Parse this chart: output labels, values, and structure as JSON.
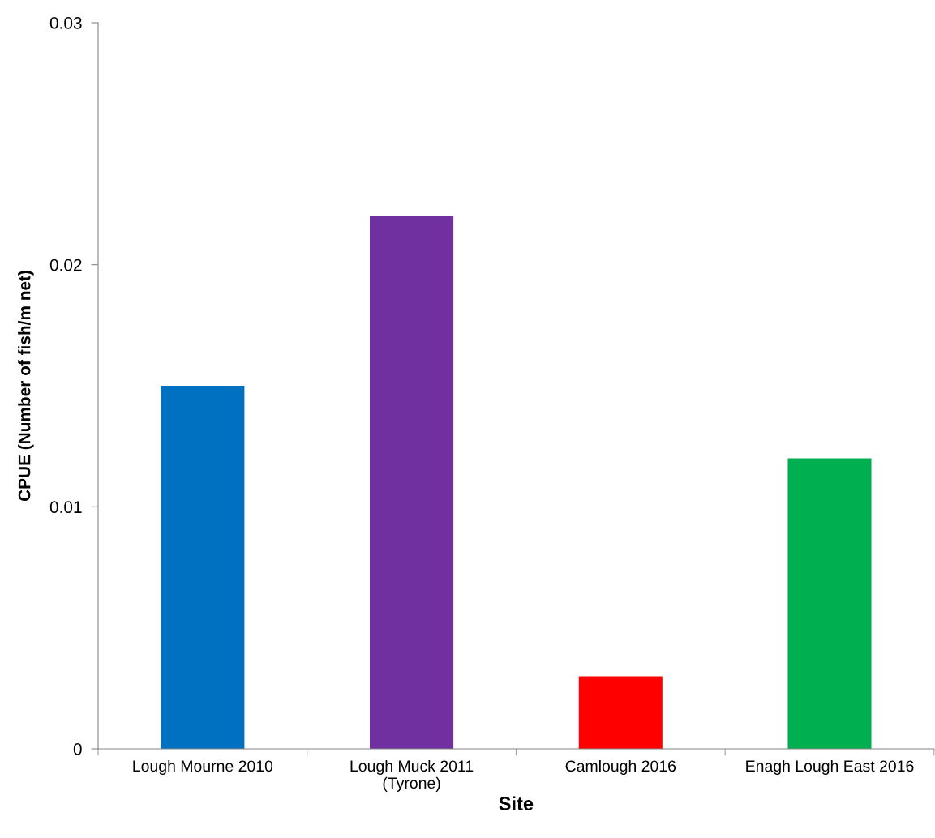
{
  "chart_data": {
    "type": "bar",
    "xlabel": "Site",
    "ylabel": "CPUE (Number of fish/m net)",
    "categories": [
      "Lough Mourne 2010",
      "Lough Muck 2011\n(Tyrone)",
      "Camlough 2016",
      "Enagh Lough East 2016"
    ],
    "values": [
      0.015,
      0.022,
      0.003,
      0.012
    ],
    "colors": [
      "#0070c0",
      "#7030a0",
      "#ff0000",
      "#00b050"
    ],
    "ylim": [
      0,
      0.03
    ],
    "yticks": [
      0,
      0.01,
      0.02,
      0.03
    ],
    "grid": false,
    "legend": false
  }
}
